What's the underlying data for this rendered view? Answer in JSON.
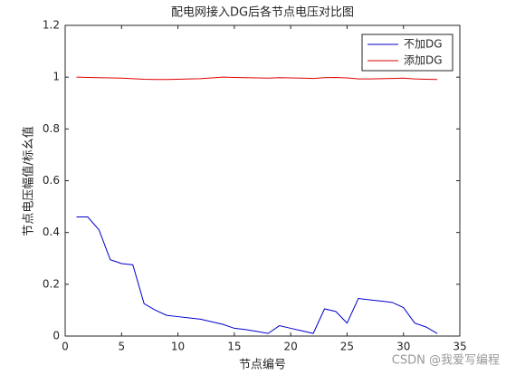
{
  "chart_data": {
    "type": "line",
    "title": "配电网接入DG后各节点电压对比图",
    "x_label": "节点编号",
    "y_label": "节点电压幅值/标幺值",
    "x": [
      1,
      2,
      3,
      4,
      5,
      6,
      7,
      8,
      9,
      10,
      11,
      12,
      13,
      14,
      15,
      16,
      17,
      18,
      19,
      20,
      21,
      22,
      23,
      24,
      25,
      26,
      27,
      28,
      29,
      30,
      31,
      32,
      33
    ],
    "series": [
      {
        "name": "不加DG",
        "color": "#0000cc",
        "values": [
          0.46,
          0.46,
          0.41,
          0.295,
          0.28,
          0.275,
          0.125,
          0.1,
          0.08,
          0.075,
          0.07,
          0.065,
          0.055,
          0.045,
          0.03,
          0.025,
          0.018,
          0.01,
          0.04,
          0.03,
          0.02,
          0.01,
          0.105,
          0.095,
          0.05,
          0.145,
          0.14,
          0.135,
          0.13,
          0.11,
          0.05,
          0.035,
          0.01
        ]
      },
      {
        "name": "添加DG",
        "color": "#e00000",
        "values": [
          1.0,
          0.999,
          0.998,
          0.997,
          0.996,
          0.994,
          0.992,
          0.991,
          0.991,
          0.992,
          0.993,
          0.994,
          0.997,
          1.0,
          0.999,
          0.998,
          0.997,
          0.996,
          0.998,
          0.997,
          0.996,
          0.995,
          0.998,
          0.999,
          0.997,
          0.993,
          0.993,
          0.994,
          0.995,
          0.996,
          0.993,
          0.992,
          0.991
        ]
      }
    ],
    "xlim": [
      0,
      35
    ],
    "xticks": [
      0,
      5,
      10,
      15,
      20,
      25,
      30,
      35
    ],
    "ylim": [
      0,
      1.2
    ],
    "yticks": [
      0,
      0.2,
      0.4,
      0.6,
      0.8,
      1,
      1.2
    ],
    "legend": "upper right",
    "watermark": "CSDN @我爱写编程"
  }
}
